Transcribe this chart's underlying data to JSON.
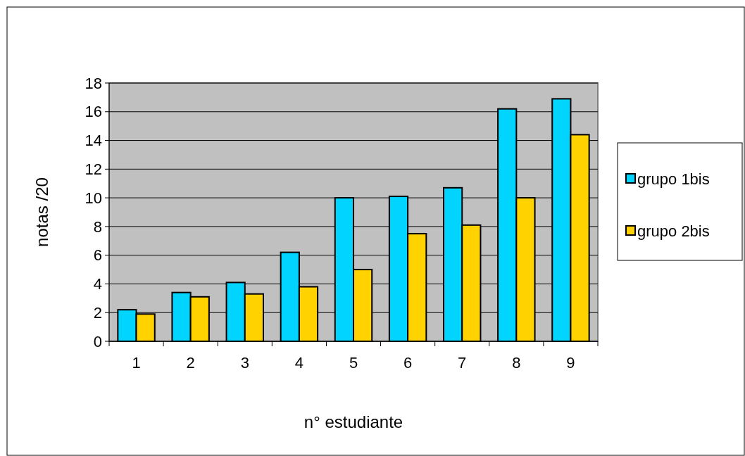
{
  "chart_data": {
    "type": "bar",
    "xlabel": "n° estudiante",
    "ylabel": "notas /20",
    "categories": [
      "1",
      "2",
      "3",
      "4",
      "5",
      "6",
      "7",
      "8",
      "9"
    ],
    "series": [
      {
        "name": "grupo 1bis",
        "color": "#00d4ff",
        "values": [
          2.2,
          3.4,
          4.1,
          6.2,
          10.0,
          10.1,
          10.7,
          16.2,
          16.9
        ]
      },
      {
        "name": "grupo 2bis",
        "color": "#ffd200",
        "values": [
          1.9,
          3.1,
          3.3,
          3.8,
          5.0,
          7.5,
          8.1,
          10.0,
          14.4
        ]
      }
    ],
    "ylim": [
      0,
      18
    ],
    "yticks": [
      0,
      2,
      4,
      6,
      8,
      10,
      12,
      14,
      16,
      18
    ],
    "grid": "y",
    "legend": "right"
  }
}
